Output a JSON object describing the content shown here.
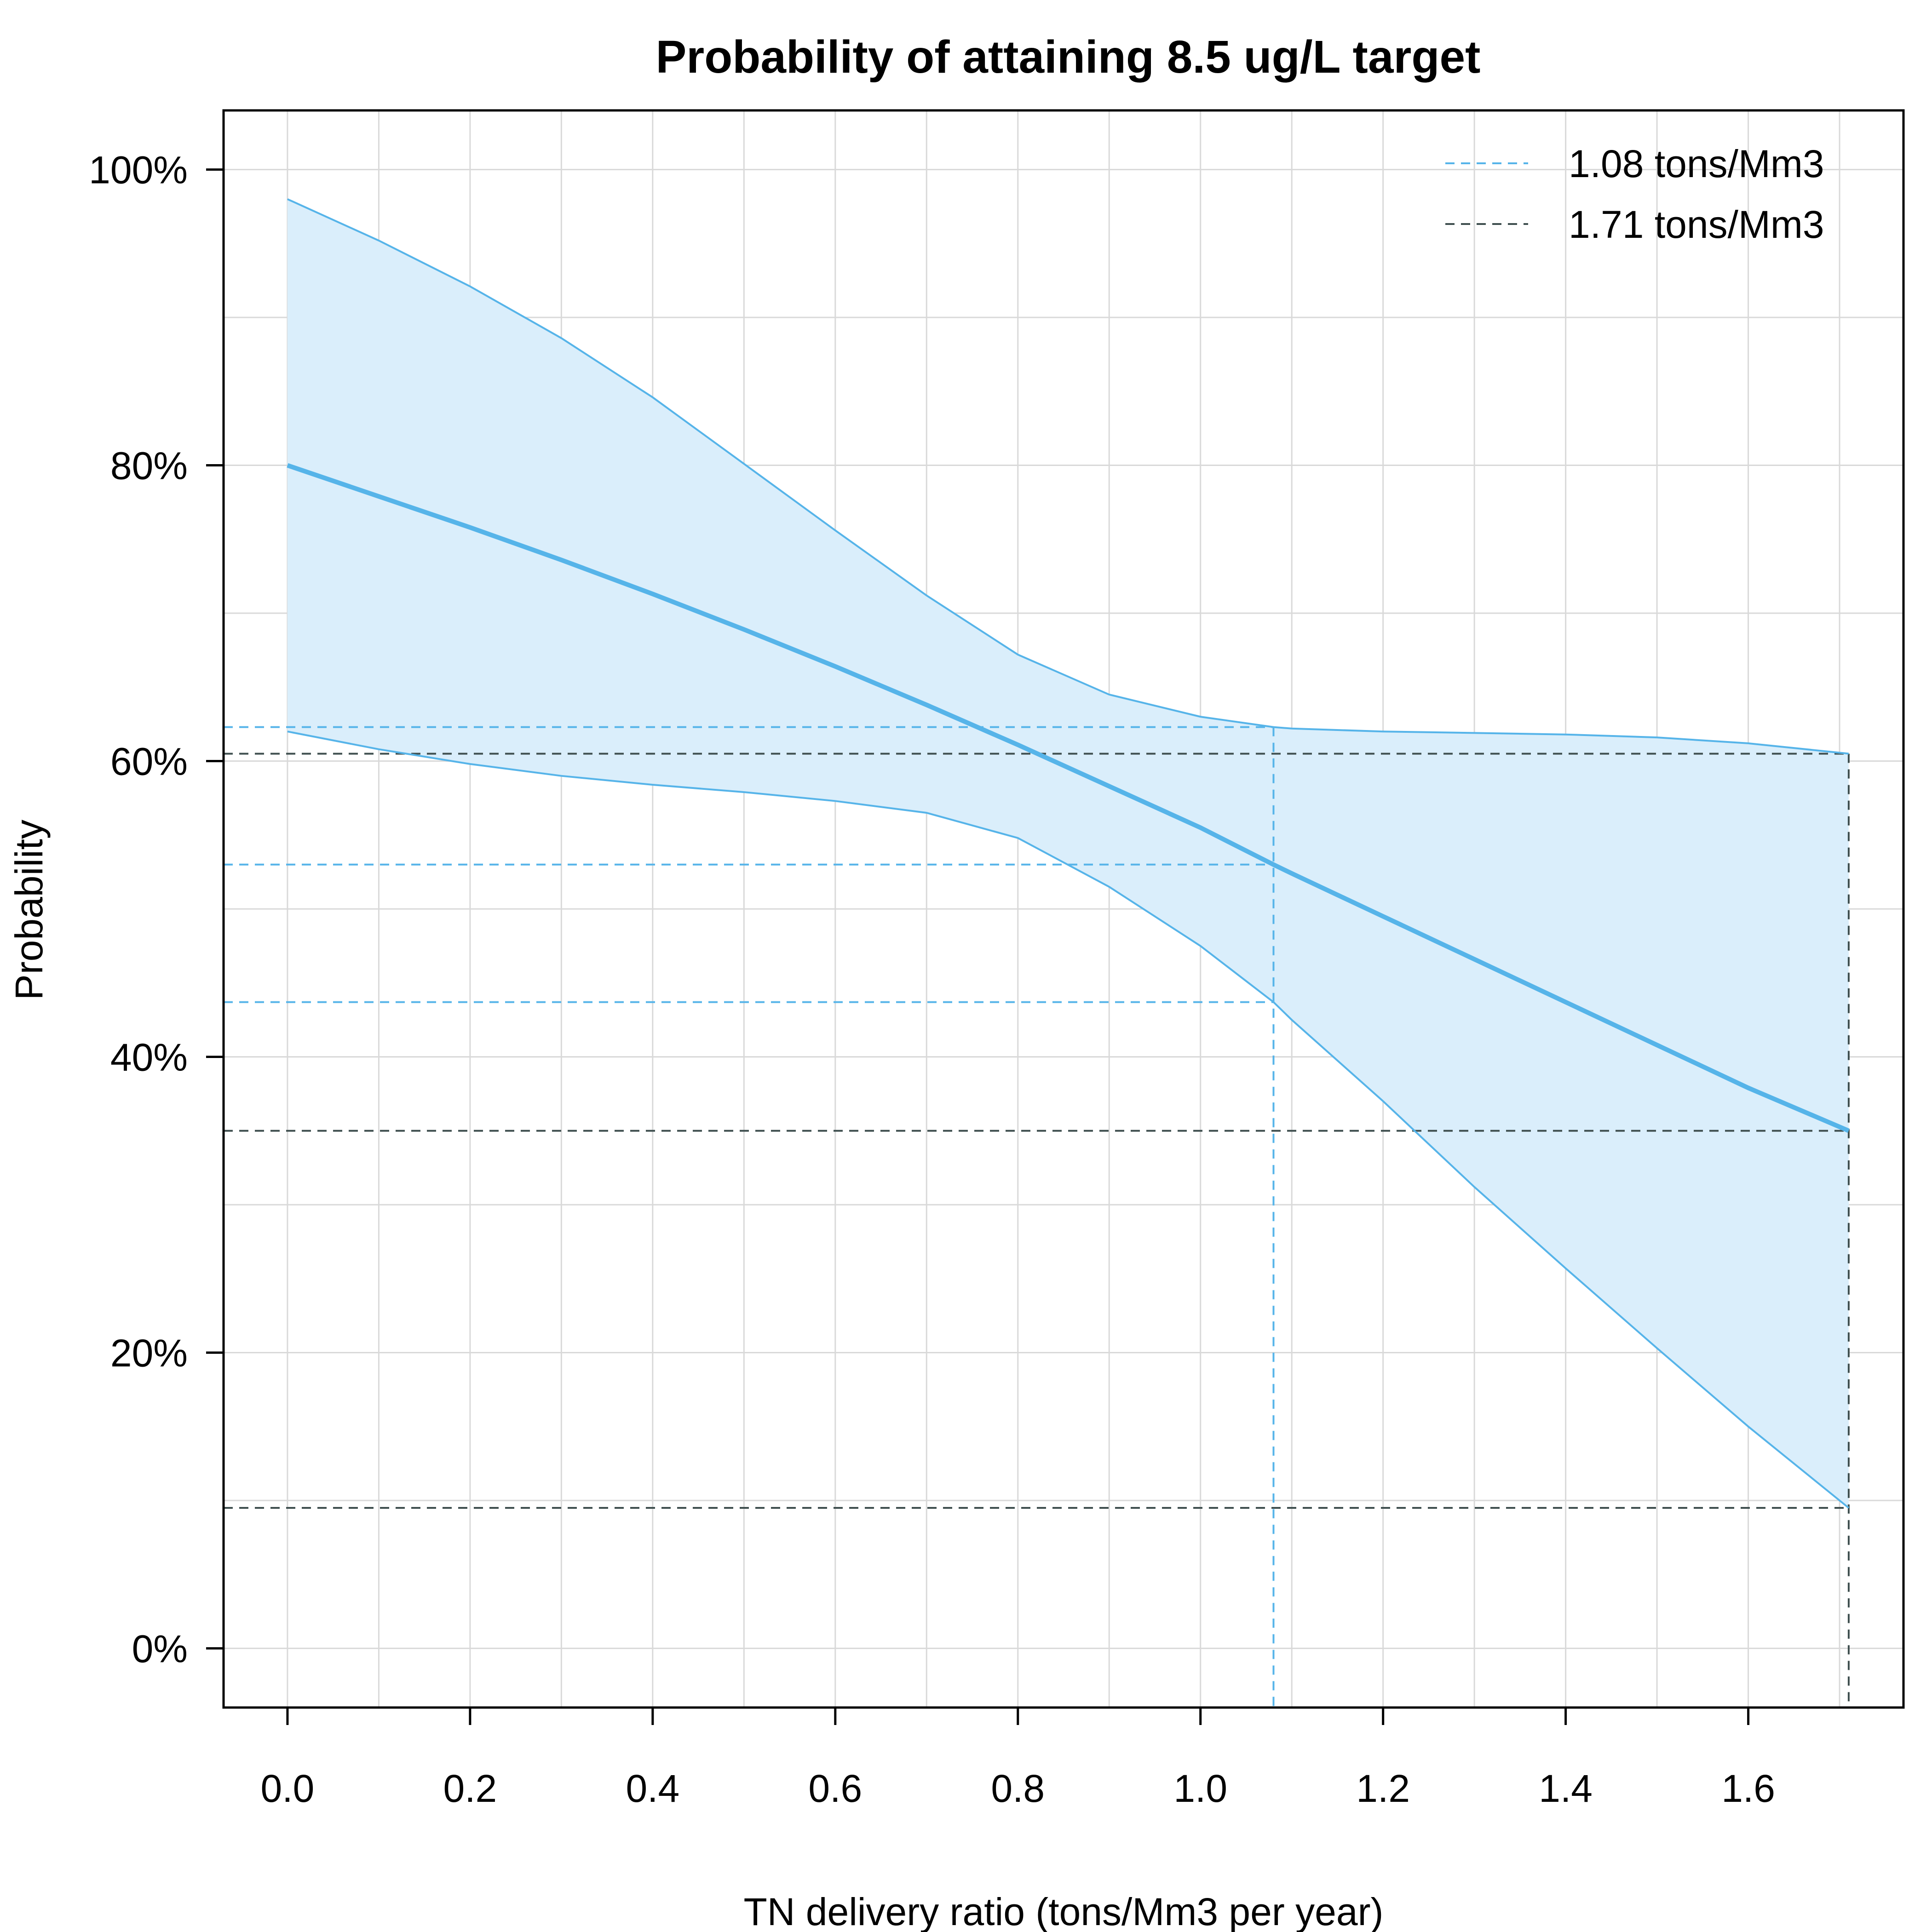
{
  "chart_data": {
    "type": "line",
    "title": "Probability of attaining 8.5 ug/L target",
    "xlabel": "TN delivery ratio (tons/Mm3 per year)",
    "ylabel": "Probability",
    "xlim": [
      -0.07,
      1.77
    ],
    "ylim": [
      -0.04,
      1.04
    ],
    "x_ticks": [
      0.0,
      0.2,
      0.4,
      0.6,
      0.8,
      1.0,
      1.2,
      1.4,
      1.6
    ],
    "x_tick_labels": [
      "0.0",
      "0.2",
      "0.4",
      "0.6",
      "0.8",
      "1.0",
      "1.2",
      "1.4",
      "1.6"
    ],
    "y_ticks": [
      0,
      0.2,
      0.4,
      0.6,
      0.8,
      1.0
    ],
    "y_tick_labels": [
      "0%",
      "20%",
      "40%",
      "60%",
      "80%",
      "100%"
    ],
    "grid": true,
    "legend_position": "top-right",
    "x": [
      0.0,
      0.1,
      0.2,
      0.3,
      0.4,
      0.5,
      0.6,
      0.7,
      0.8,
      0.9,
      1.0,
      1.08,
      1.1,
      1.2,
      1.3,
      1.4,
      1.5,
      1.6,
      1.71
    ],
    "series": [
      {
        "role": "median",
        "color": "#56B4E9",
        "values": [
          0.8,
          0.779,
          0.758,
          0.736,
          0.713,
          0.689,
          0.664,
          0.638,
          0.611,
          0.583,
          0.555,
          0.53,
          0.524,
          0.495,
          0.466,
          0.437,
          0.408,
          0.379,
          0.35
        ]
      },
      {
        "role": "upper",
        "color": "#56B4E9",
        "values": [
          0.98,
          0.952,
          0.921,
          0.886,
          0.846,
          0.801,
          0.756,
          0.712,
          0.672,
          0.645,
          0.63,
          0.623,
          0.622,
          0.62,
          0.619,
          0.618,
          0.616,
          0.612,
          0.605
        ]
      },
      {
        "role": "lower",
        "color": "#56B4E9",
        "values": [
          0.62,
          0.608,
          0.598,
          0.59,
          0.584,
          0.579,
          0.573,
          0.565,
          0.548,
          0.515,
          0.475,
          0.437,
          0.425,
          0.37,
          0.312,
          0.257,
          0.203,
          0.15,
          0.095
        ]
      }
    ],
    "reference_lines": [
      {
        "label": "1.08 tons/Mm3",
        "x": 1.08,
        "y_levels": [
          0.623,
          0.53,
          0.437
        ],
        "color": "#56B4E9"
      },
      {
        "label": "1.71 tons/Mm3",
        "x": 1.71,
        "y_levels": [
          0.605,
          0.35,
          0.095
        ],
        "color": "#3f4f4f"
      }
    ],
    "band_fill_color": "#DAEEFB",
    "grid_color": "#d9d9d9",
    "axis_color": "#000000"
  }
}
